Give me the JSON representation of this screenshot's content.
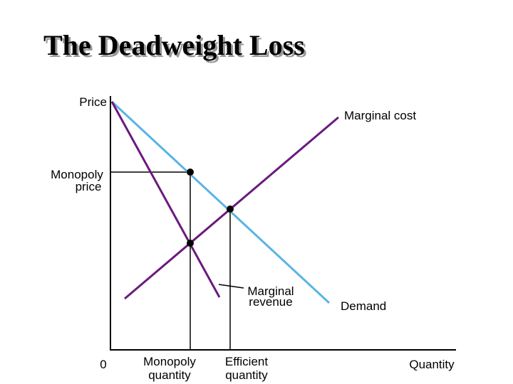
{
  "title": "The Deadweight Loss",
  "labels": {
    "price": "Price",
    "marginal_cost": "Marginal cost",
    "monopoly_price": [
      "Monopoly",
      "price"
    ],
    "marginal_revenue": [
      "Marginal",
      "revenue"
    ],
    "demand": "Demand",
    "origin": "0",
    "monopoly_quantity": [
      "Monopoly",
      "quantity"
    ],
    "efficient_quantity": [
      "Efficient",
      "quantity"
    ],
    "quantity": "Quantity"
  }
}
